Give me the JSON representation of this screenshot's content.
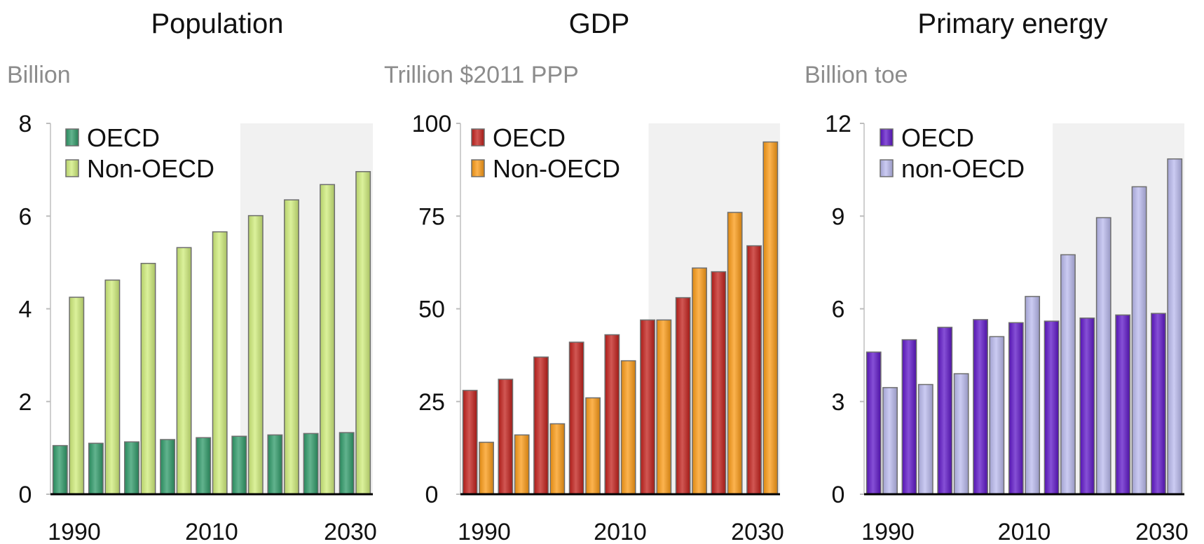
{
  "chart_data": [
    {
      "type": "bar",
      "title": "Population",
      "unit_label": "Billion",
      "ylim": [
        0,
        8
      ],
      "yticks": [
        "0",
        "2",
        "4",
        "6",
        "8"
      ],
      "xtick_labels": [
        "1990",
        "2010",
        "2030"
      ],
      "projection_shaded_from": 2014,
      "categories": [
        1990,
        1995,
        2000,
        2005,
        2010,
        2015,
        2020,
        2025,
        2030
      ],
      "series": [
        {
          "name": "OECD",
          "color": "#2e9a68",
          "values": [
            1.05,
            1.1,
            1.13,
            1.18,
            1.22,
            1.25,
            1.28,
            1.31,
            1.33
          ]
        },
        {
          "name": "Non-OECD",
          "color": "#cfec7a",
          "values": [
            4.25,
            4.62,
            4.98,
            5.32,
            5.66,
            6.01,
            6.35,
            6.68,
            6.96
          ]
        }
      ]
    },
    {
      "type": "bar",
      "title": "GDP",
      "unit_label": "Trillion $2011 PPP",
      "ylim": [
        0,
        100
      ],
      "yticks": [
        "0",
        "25",
        "50",
        "75",
        "100"
      ],
      "xtick_labels": [
        "1990",
        "2010",
        "2030"
      ],
      "projection_shaded_from": 2014,
      "categories": [
        1990,
        1995,
        2000,
        2005,
        2010,
        2015,
        2020,
        2025,
        2030
      ],
      "series": [
        {
          "name": "OECD",
          "color": "#c21f1a",
          "values": [
            28,
            31,
            37,
            41,
            43,
            47,
            53,
            60,
            67
          ]
        },
        {
          "name": "Non-OECD",
          "color": "#fb9a14",
          "values": [
            14,
            16,
            19,
            26,
            36,
            47,
            61,
            76,
            95
          ]
        }
      ]
    },
    {
      "type": "bar",
      "title": "Primary energy",
      "unit_label": "Billion toe",
      "ylim": [
        0,
        12
      ],
      "yticks": [
        "0",
        "3",
        "6",
        "9",
        "12"
      ],
      "xtick_labels": [
        "1990",
        "2010",
        "2030"
      ],
      "projection_shaded_from": 2014,
      "categories": [
        1990,
        1995,
        2000,
        2005,
        2010,
        2015,
        2020,
        2025,
        2030
      ],
      "series": [
        {
          "name": "OECD",
          "color": "#5e16c8",
          "values": [
            4.6,
            5.0,
            5.4,
            5.65,
            5.55,
            5.6,
            5.7,
            5.8,
            5.85
          ]
        },
        {
          "name": "non-OECD",
          "color": "#b9b9ee",
          "values": [
            3.45,
            3.55,
            3.9,
            5.1,
            6.4,
            7.75,
            8.95,
            9.95,
            10.85
          ]
        }
      ]
    }
  ]
}
